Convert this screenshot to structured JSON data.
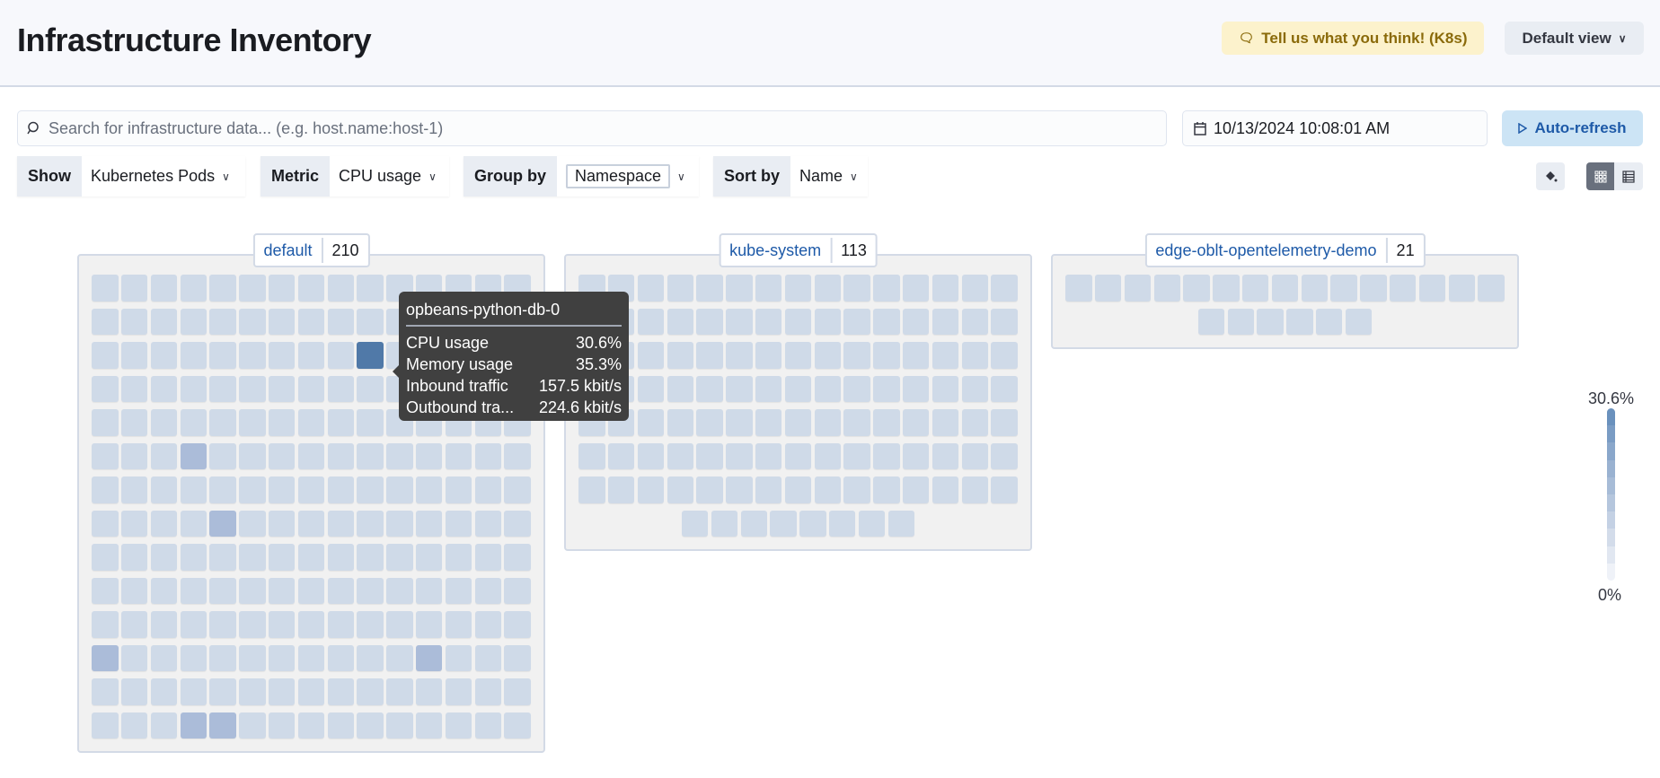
{
  "header": {
    "title": "Infrastructure Inventory",
    "feedback_label": "Tell us what you think! (K8s)",
    "default_view_label": "Default view"
  },
  "search": {
    "placeholder": "Search for infrastructure data... (e.g. host.name:host-1)",
    "value": ""
  },
  "date": {
    "value": "10/13/2024 10:08:01 AM"
  },
  "auto_refresh_label": "Auto-refresh",
  "filters": {
    "show": {
      "label": "Show",
      "value": "Kubernetes Pods"
    },
    "metric": {
      "label": "Metric",
      "value": "CPU usage"
    },
    "group_by": {
      "label": "Group by",
      "value": "Namespace"
    },
    "sort_by": {
      "label": "Sort by",
      "value": "Name"
    }
  },
  "view_mode": "map",
  "colors": {
    "tile_base": "#cfdae8",
    "tile_mid": "#abbcd9",
    "tile_high": "#5079a8"
  },
  "groups": [
    {
      "name": "default",
      "count": "210",
      "pod_count": 210,
      "elevated_pods": [
        {
          "index": 39,
          "level": "high"
        },
        {
          "index": 78,
          "level": "mid"
        },
        {
          "index": 109,
          "level": "mid"
        },
        {
          "index": 165,
          "level": "mid"
        },
        {
          "index": 176,
          "level": "mid"
        },
        {
          "index": 198,
          "level": "mid"
        },
        {
          "index": 199,
          "level": "mid"
        }
      ]
    },
    {
      "name": "kube-system",
      "count": "113",
      "pod_count": 113,
      "elevated_pods": []
    },
    {
      "name": "edge-oblt-opentelemetry-demo",
      "count": "21",
      "pod_count": 21,
      "elevated_pods": []
    }
  ],
  "tooltip": {
    "title": "opbeans-python-db-0",
    "rows": [
      {
        "label": "CPU usage",
        "value": "30.6%"
      },
      {
        "label": "Memory usage",
        "value": "35.3%"
      },
      {
        "label": "Inbound traffic",
        "value": "157.5 kbit/s"
      },
      {
        "label": "Outbound tra...",
        "value": "224.6 kbit/s"
      }
    ]
  },
  "legend": {
    "max": "30.6%",
    "min": "0%",
    "steps": [
      "#6a91bd",
      "#7a9cc4",
      "#8aa7cb",
      "#9ab2d1",
      "#a7bcd7",
      "#b5c6dd",
      "#c4d1e4",
      "#d3dcea",
      "#e1e7f1",
      "#eff2f8"
    ]
  }
}
